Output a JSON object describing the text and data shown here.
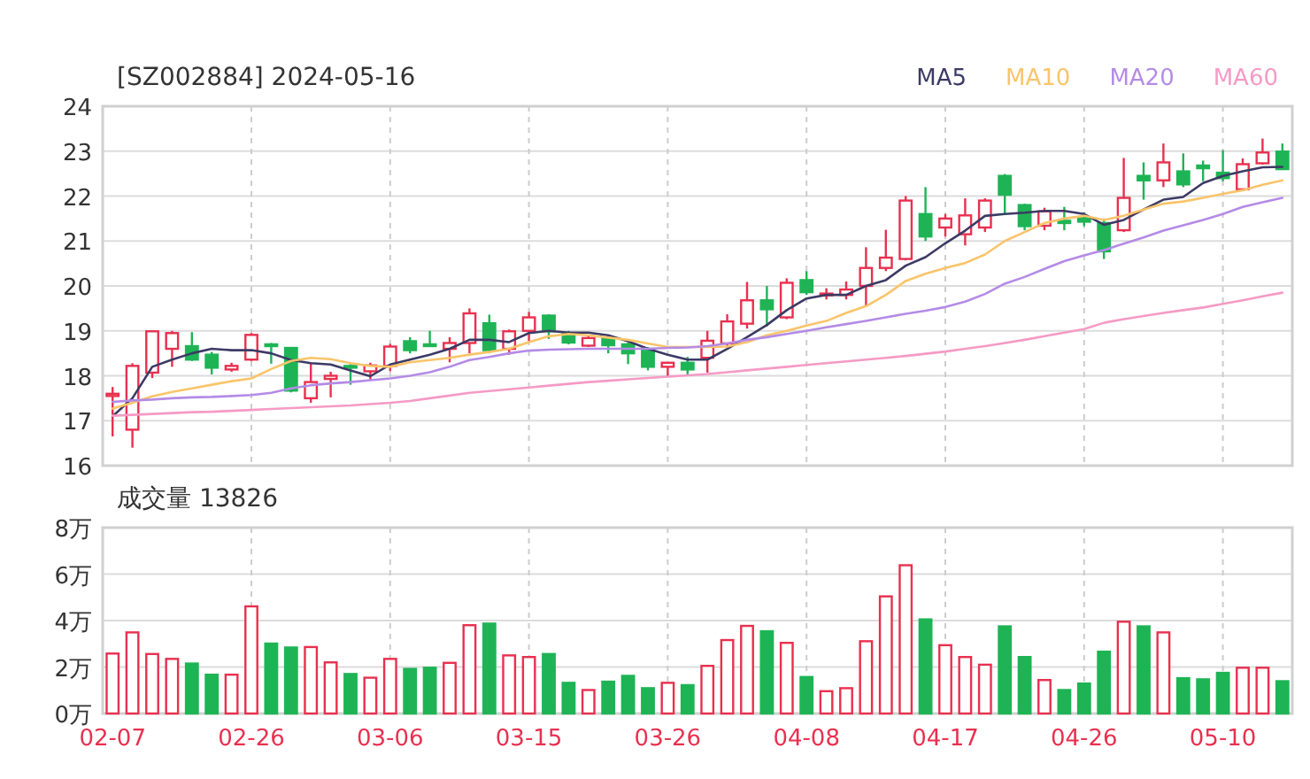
{
  "chart_data": [
    {
      "type": "candlestick",
      "title": "[SZ002884] 2024-05-16",
      "grid": true,
      "legend": "top right",
      "tick_labels": "y",
      "ylim": [
        16,
        24
      ],
      "yticks": [
        16,
        17,
        18,
        19,
        20,
        21,
        22,
        23,
        24
      ],
      "categories": [
        null,
        null,
        null,
        null,
        null,
        null,
        null,
        null,
        null,
        null,
        null,
        null,
        null,
        null,
        null,
        null,
        null,
        null,
        null,
        null,
        null,
        null,
        null,
        null,
        null,
        null,
        null,
        null,
        null,
        null,
        null,
        null,
        null,
        null,
        null,
        null,
        null,
        null,
        null,
        null,
        null,
        null,
        null,
        null,
        null,
        null,
        null,
        null,
        null,
        null,
        null,
        null,
        null,
        null,
        null,
        null,
        null,
        null,
        null,
        null
      ],
      "ohlc": [
        [
          17.55,
          17.75,
          16.65,
          17.6
        ],
        [
          16.8,
          18.28,
          16.4,
          18.22
        ],
        [
          18.07,
          19.0,
          17.95,
          18.99
        ],
        [
          18.6,
          19.0,
          18.2,
          18.95
        ],
        [
          18.66,
          18.97,
          18.33,
          18.36
        ],
        [
          18.47,
          18.53,
          18.03,
          18.18
        ],
        [
          18.14,
          18.29,
          18.09,
          18.22
        ],
        [
          18.36,
          18.95,
          18.33,
          18.91
        ],
        [
          18.7,
          18.73,
          18.27,
          18.66
        ],
        [
          18.62,
          18.63,
          17.63,
          17.67
        ],
        [
          17.5,
          18.29,
          17.4,
          17.86
        ],
        [
          17.93,
          18.09,
          17.52,
          18.0
        ],
        [
          18.22,
          18.26,
          17.8,
          18.18
        ],
        [
          18.1,
          18.29,
          17.9,
          18.23
        ],
        [
          18.22,
          18.71,
          18.1,
          18.65
        ],
        [
          18.77,
          18.86,
          18.5,
          18.57
        ],
        [
          18.7,
          19.0,
          18.66,
          18.68
        ],
        [
          18.6,
          18.86,
          18.3,
          18.73
        ],
        [
          18.73,
          19.5,
          18.5,
          19.39
        ],
        [
          19.17,
          19.36,
          18.5,
          18.57
        ],
        [
          18.6,
          19.03,
          18.47,
          18.99
        ],
        [
          19.0,
          19.42,
          18.77,
          19.3
        ],
        [
          19.34,
          19.37,
          18.82,
          18.99
        ],
        [
          18.95,
          19.0,
          18.7,
          18.74
        ],
        [
          18.67,
          18.9,
          18.64,
          18.84
        ],
        [
          18.84,
          18.9,
          18.5,
          18.68
        ],
        [
          18.7,
          18.74,
          18.26,
          18.5
        ],
        [
          18.6,
          18.64,
          18.12,
          18.2
        ],
        [
          18.2,
          18.29,
          17.97,
          18.29
        ],
        [
          18.29,
          18.42,
          18.03,
          18.14
        ],
        [
          18.4,
          19.0,
          18.07,
          18.78
        ],
        [
          18.72,
          19.37,
          18.64,
          19.21
        ],
        [
          19.16,
          20.09,
          19.05,
          19.68
        ],
        [
          19.68,
          20.0,
          19.1,
          19.48
        ],
        [
          19.3,
          20.17,
          19.26,
          20.07
        ],
        [
          20.13,
          20.33,
          19.8,
          19.86
        ],
        [
          19.8,
          19.95,
          19.7,
          19.83
        ],
        [
          19.8,
          20.1,
          19.7,
          19.92
        ],
        [
          20.0,
          20.86,
          19.55,
          20.4
        ],
        [
          20.4,
          21.25,
          20.33,
          20.63
        ],
        [
          20.6,
          22.0,
          20.57,
          21.9
        ],
        [
          21.6,
          22.2,
          21.0,
          21.1
        ],
        [
          21.3,
          21.6,
          21.1,
          21.5
        ],
        [
          21.15,
          21.95,
          20.9,
          21.57
        ],
        [
          21.3,
          21.95,
          21.2,
          21.9
        ],
        [
          22.45,
          22.49,
          21.6,
          22.03
        ],
        [
          21.8,
          21.83,
          21.24,
          21.33
        ],
        [
          21.34,
          21.74,
          21.24,
          21.66
        ],
        [
          21.45,
          21.76,
          21.24,
          21.4
        ],
        [
          21.52,
          21.64,
          21.33,
          21.43
        ],
        [
          21.4,
          21.5,
          20.6,
          20.77
        ],
        [
          21.24,
          22.85,
          21.2,
          21.96
        ],
        [
          22.45,
          22.75,
          21.92,
          22.35
        ],
        [
          22.35,
          23.17,
          22.2,
          22.75
        ],
        [
          22.55,
          22.95,
          22.2,
          22.26
        ],
        [
          22.68,
          22.79,
          22.33,
          22.62
        ],
        [
          22.52,
          23.02,
          22.33,
          22.4
        ],
        [
          22.15,
          22.84,
          22.13,
          22.71
        ],
        [
          22.73,
          23.28,
          22.7,
          22.97
        ],
        [
          22.99,
          23.17,
          22.58,
          22.6
        ]
      ],
      "colors": [
        "#e8304f",
        "#e8304f",
        "#e8304f",
        "#e8304f",
        "#1eb455",
        "#1eb455",
        "#e8304f",
        "#e8304f",
        "#1eb455",
        "#1eb455",
        "#e8304f",
        "#e8304f",
        "#1eb455",
        "#e8304f",
        "#e8304f",
        "#1eb455",
        "#1eb455",
        "#e8304f",
        "#e8304f",
        "#1eb455",
        "#e8304f",
        "#e8304f",
        "#1eb455",
        "#1eb455",
        "#e8304f",
        "#1eb455",
        "#1eb455",
        "#1eb455",
        "#e8304f",
        "#1eb455",
        "#e8304f",
        "#e8304f",
        "#e8304f",
        "#1eb455",
        "#e8304f",
        "#1eb455",
        "#e8304f",
        "#e8304f",
        "#e8304f",
        "#e8304f",
        "#e8304f",
        "#1eb455",
        "#e8304f",
        "#e8304f",
        "#e8304f",
        "#1eb455",
        "#1eb455",
        "#e8304f",
        "#1eb455",
        "#1eb455",
        "#1eb455",
        "#e8304f",
        "#1eb455",
        "#e8304f",
        "#1eb455",
        "#1eb455",
        "#1eb455",
        "#e8304f",
        "#e8304f",
        "#1eb455"
      ],
      "series": [
        {
          "name": "MA5",
          "type": "line",
          "color": "#3c3a64",
          "values": [
            17.1,
            17.5,
            18.2,
            18.36,
            18.5,
            18.6,
            18.57,
            18.57,
            18.5,
            18.35,
            18.28,
            18.25,
            18.12,
            17.99,
            18.25,
            18.36,
            18.47,
            18.6,
            18.8,
            18.8,
            18.75,
            18.95,
            19.0,
            18.96,
            18.96,
            18.9,
            18.77,
            18.6,
            18.47,
            18.36,
            18.36,
            18.6,
            18.86,
            19.13,
            19.46,
            19.72,
            19.8,
            19.8,
            20.0,
            20.13,
            20.45,
            20.64,
            20.95,
            21.23,
            21.56,
            21.6,
            21.63,
            21.67,
            21.67,
            21.6,
            21.36,
            21.47,
            21.7,
            21.92,
            21.98,
            22.29,
            22.45,
            22.55,
            22.64,
            22.65
          ]
        },
        {
          "name": "MA10",
          "type": "line",
          "color": "#f9c46a",
          "values": [
            17.27,
            17.4,
            17.54,
            17.64,
            17.72,
            17.8,
            17.88,
            17.94,
            18.15,
            18.33,
            18.4,
            18.37,
            18.28,
            18.22,
            18.2,
            18.3,
            18.35,
            18.4,
            18.47,
            18.53,
            18.6,
            18.75,
            18.88,
            18.93,
            18.9,
            18.85,
            18.8,
            18.72,
            18.64,
            18.64,
            18.64,
            18.65,
            18.75,
            18.9,
            19.0,
            19.12,
            19.22,
            19.4,
            19.55,
            19.8,
            20.11,
            20.27,
            20.4,
            20.51,
            20.7,
            21.0,
            21.2,
            21.4,
            21.5,
            21.56,
            21.47,
            21.56,
            21.7,
            21.83,
            21.88,
            21.96,
            22.05,
            22.13,
            22.25,
            22.35
          ]
        },
        {
          "name": "MA20",
          "type": "line",
          "color": "#b48be6",
          "values": [
            17.42,
            17.45,
            17.47,
            17.5,
            17.52,
            17.53,
            17.55,
            17.57,
            17.62,
            17.72,
            17.79,
            17.83,
            17.86,
            17.9,
            17.94,
            18.0,
            18.08,
            18.2,
            18.35,
            18.42,
            18.5,
            18.56,
            18.58,
            18.59,
            18.6,
            18.6,
            18.6,
            18.6,
            18.62,
            18.63,
            18.66,
            18.72,
            18.8,
            18.86,
            18.93,
            19.0,
            19.08,
            19.15,
            19.22,
            19.3,
            19.38,
            19.45,
            19.53,
            19.65,
            19.82,
            20.05,
            20.2,
            20.38,
            20.55,
            20.68,
            20.8,
            20.94,
            21.08,
            21.23,
            21.35,
            21.47,
            21.6,
            21.76,
            21.86,
            21.96
          ]
        },
        {
          "name": "MA60",
          "type": "line",
          "color": "#f59ac5",
          "values": [
            17.11,
            17.13,
            17.15,
            17.17,
            17.19,
            17.2,
            17.22,
            17.24,
            17.26,
            17.28,
            17.3,
            17.32,
            17.34,
            17.37,
            17.4,
            17.44,
            17.5,
            17.56,
            17.62,
            17.66,
            17.7,
            17.74,
            17.78,
            17.82,
            17.86,
            17.89,
            17.92,
            17.95,
            17.98,
            18.01,
            18.04,
            18.08,
            18.12,
            18.16,
            18.2,
            18.24,
            18.28,
            18.32,
            18.36,
            18.4,
            18.44,
            18.49,
            18.54,
            18.6,
            18.66,
            18.73,
            18.8,
            18.88,
            18.96,
            19.04,
            19.18,
            19.26,
            19.33,
            19.4,
            19.46,
            19.52,
            19.6,
            19.68,
            19.77,
            19.85
          ]
        }
      ]
    },
    {
      "type": "bar",
      "title": "成交量 13826",
      "grid": true,
      "ylim": [
        0,
        8
      ],
      "yticks": [
        {
          "value": 0,
          "label": "0万"
        },
        {
          "value": 2,
          "label": "2万"
        },
        {
          "value": 4,
          "label": "4万"
        },
        {
          "value": 6,
          "label": "6万"
        },
        {
          "value": 8,
          "label": "8万"
        }
      ],
      "categories": [
        "02-07",
        null,
        null,
        null,
        null,
        null,
        null,
        "02-26",
        null,
        null,
        null,
        null,
        null,
        null,
        "03-06",
        null,
        null,
        null,
        null,
        null,
        null,
        "03-15",
        null,
        null,
        null,
        null,
        null,
        null,
        "03-26",
        null,
        null,
        null,
        null,
        null,
        null,
        "04-08",
        null,
        null,
        null,
        null,
        null,
        null,
        "04-17",
        null,
        null,
        null,
        null,
        null,
        null,
        "04-26",
        null,
        null,
        null,
        null,
        null,
        null,
        "05-10",
        null,
        null,
        null
      ],
      "values": [
        2.58,
        3.49,
        2.56,
        2.35,
        2.15,
        1.67,
        1.67,
        4.61,
        3.01,
        2.84,
        2.86,
        2.2,
        1.7,
        1.54,
        2.35,
        1.92,
        1.97,
        2.18,
        3.8,
        3.87,
        2.5,
        2.43,
        2.56,
        1.32,
        1.01,
        1.37,
        1.62,
        1.09,
        1.32,
        1.22,
        2.05,
        3.16,
        3.77,
        3.54,
        3.04,
        1.57,
        0.96,
        1.09,
        3.11,
        5.04,
        6.38,
        4.05,
        2.94,
        2.43,
        2.1,
        3.75,
        2.43,
        1.44,
        1.01,
        1.29,
        2.66,
        3.95,
        3.75,
        3.49,
        1.52,
        1.47,
        1.75,
        1.97,
        1.97,
        1.39
      ],
      "colors": [
        "#e8304f",
        "#e8304f",
        "#e8304f",
        "#e8304f",
        "#1eb455",
        "#1eb455",
        "#e8304f",
        "#e8304f",
        "#1eb455",
        "#1eb455",
        "#e8304f",
        "#e8304f",
        "#1eb455",
        "#e8304f",
        "#e8304f",
        "#1eb455",
        "#1eb455",
        "#e8304f",
        "#e8304f",
        "#1eb455",
        "#e8304f",
        "#e8304f",
        "#1eb455",
        "#1eb455",
        "#e8304f",
        "#1eb455",
        "#1eb455",
        "#1eb455",
        "#e8304f",
        "#1eb455",
        "#e8304f",
        "#e8304f",
        "#e8304f",
        "#1eb455",
        "#e8304f",
        "#1eb455",
        "#e8304f",
        "#e8304f",
        "#e8304f",
        "#e8304f",
        "#e8304f",
        "#1eb455",
        "#e8304f",
        "#e8304f",
        "#e8304f",
        "#1eb455",
        "#1eb455",
        "#e8304f",
        "#1eb455",
        "#1eb455",
        "#1eb455",
        "#e8304f",
        "#1eb455",
        "#e8304f",
        "#1eb455",
        "#1eb455",
        "#1eb455",
        "#e8304f",
        "#e8304f",
        "#1eb455"
      ]
    }
  ]
}
